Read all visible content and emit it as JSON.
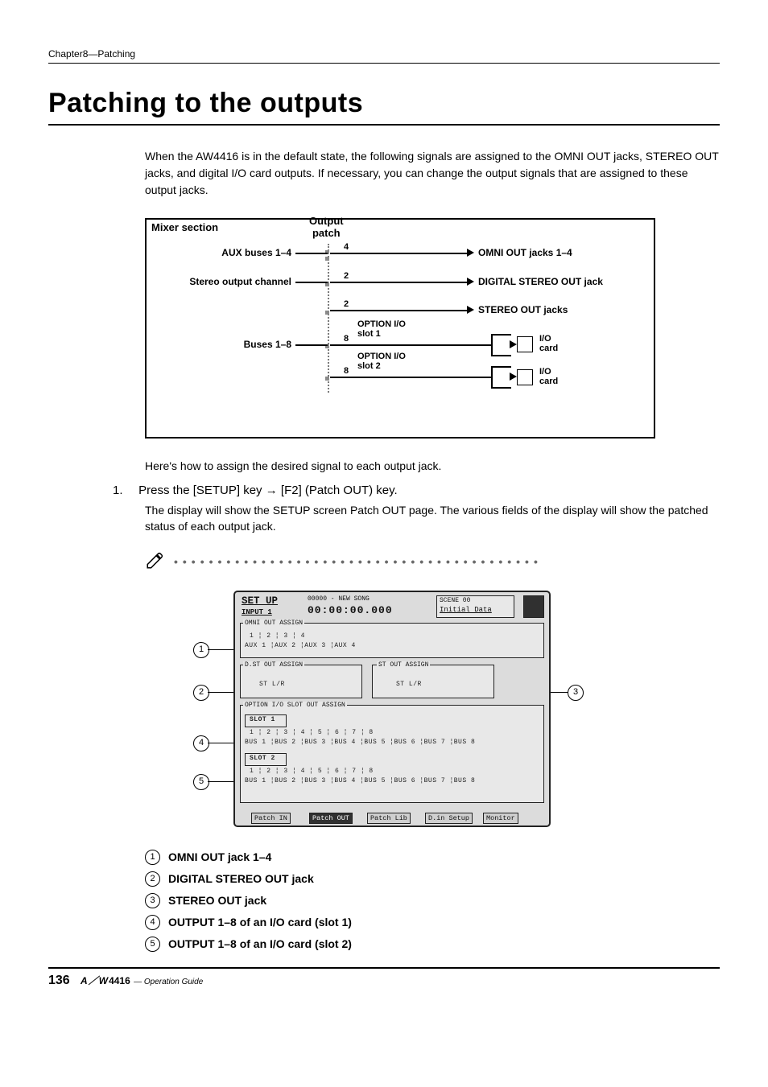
{
  "header": {
    "chapter": "Chapter8—Patching"
  },
  "title": "Patching to the outputs",
  "intro": "When the AW4416 is in the default state, the following signals are assigned to the OMNI OUT jacks, STEREO OUT jacks, and digital I/O card outputs. If necessary, you can change the output signals that are assigned to these output jacks.",
  "diagram": {
    "mixer_section": "Mixer section",
    "output_patch": "Output\npatch",
    "left_rows": [
      {
        "label": "AUX buses 1–4",
        "count": "4"
      },
      {
        "label": "Stereo output channel",
        "count": "2"
      },
      {
        "label": "",
        "count": "2"
      },
      {
        "label": "Buses 1–8",
        "count": "8"
      },
      {
        "label": "",
        "count": "8"
      }
    ],
    "right_rows": [
      "OMNI OUT jacks 1–4",
      "DIGITAL STEREO OUT jack",
      "STEREO OUT jacks"
    ],
    "option_slots": [
      "OPTION I/O\nslot 1",
      "OPTION I/O\nslot 2"
    ],
    "io_card": "I/O\ncard"
  },
  "sub_intro": "Here's how to assign the desired signal to each output jack.",
  "step1": {
    "num": "1.",
    "head_a": "Press the [SETUP] key ",
    "arrow": "→",
    "head_b": " [F2] (Patch OUT) key.",
    "body": "The display will show the SETUP screen Patch OUT page. The various fields of the display will show the patched status of each output jack."
  },
  "screenshot": {
    "title": "SET UP",
    "subtitle": "INPUT 1",
    "song": "00000 - NEW SONG",
    "time": "00:00:00.000",
    "scene": "SCENE 00",
    "scene_sub": "Initial Data",
    "sections": {
      "omni": {
        "label": "OMNI OUT ASSIGN",
        "cols": [
          "1",
          "2",
          "3",
          "4"
        ],
        "vals": [
          "AUX 1",
          "AUX 2",
          "AUX 3",
          "AUX 4"
        ]
      },
      "dst": {
        "label": "D.ST OUT ASSIGN",
        "val": "ST    L/R"
      },
      "st": {
        "label": "ST OUT ASSIGN",
        "val": "ST    L/R"
      },
      "optionhdr": "OPTION I/O SLOT OUT ASSIGN",
      "slot1": {
        "label": "SLOT 1",
        "cols": [
          "1",
          "2",
          "3",
          "4",
          "5",
          "6",
          "7",
          "8"
        ],
        "vals": [
          "BUS 1",
          "BUS 2",
          "BUS 3",
          "BUS 4",
          "BUS 5",
          "BUS 6",
          "BUS 7",
          "BUS 8"
        ]
      },
      "slot2": {
        "label": "SLOT 2",
        "cols": [
          "1",
          "2",
          "3",
          "4",
          "5",
          "6",
          "7",
          "8"
        ],
        "vals": [
          "BUS 1",
          "BUS 2",
          "BUS 3",
          "BUS 4",
          "BUS 5",
          "BUS 6",
          "BUS 7",
          "BUS 8"
        ]
      }
    },
    "tabs": [
      "Patch IN",
      "Patch OUT",
      "Patch Lib",
      "D.in Setup",
      "Monitor"
    ],
    "active_tab_index": 1
  },
  "legend": [
    "OMNI OUT jack 1–4",
    "DIGITAL STEREO OUT jack",
    "STEREO OUT jack",
    "OUTPUT 1–8 of an I/O card (slot 1)",
    "OUTPUT 1–8 of an I/O card (slot 2)"
  ],
  "footer": {
    "page": "136",
    "model_prefix": "A",
    "model_slashpart": "W",
    "model_num": "4416",
    "guide": "— Operation Guide"
  },
  "colors": {
    "text": "#000000",
    "screen_bg": "#dcdcdc",
    "screen_border": "#222222",
    "dots": "#6a6a6a"
  }
}
